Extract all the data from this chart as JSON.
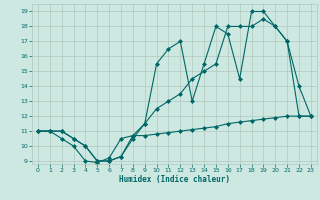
{
  "xlabel": "Humidex (Indice chaleur)",
  "ylabel": "",
  "xlim": [
    -0.5,
    23.5
  ],
  "ylim": [
    8.8,
    19.5
  ],
  "xticks": [
    0,
    1,
    2,
    3,
    4,
    5,
    6,
    7,
    8,
    9,
    10,
    11,
    12,
    13,
    14,
    15,
    16,
    17,
    18,
    19,
    20,
    21,
    22,
    23
  ],
  "yticks": [
    9,
    10,
    11,
    12,
    13,
    14,
    15,
    16,
    17,
    18,
    19
  ],
  "background_color": "#cce8e0",
  "grid_color": "#b0c8c0",
  "line_color": "#006666",
  "line1_x": [
    0,
    1,
    2,
    3,
    4,
    5,
    6,
    7,
    8,
    9,
    10,
    11,
    12,
    13,
    14,
    15,
    16,
    17,
    18,
    19,
    20,
    21,
    22,
    23
  ],
  "line1_y": [
    11,
    11,
    11,
    10.5,
    10,
    9,
    9,
    9.3,
    10.7,
    11.5,
    15.5,
    16.5,
    17.0,
    13.0,
    15.5,
    18.0,
    17.5,
    14.5,
    19.0,
    19.0,
    18.0,
    17.0,
    14.0,
    12.0
  ],
  "line2_x": [
    0,
    1,
    2,
    3,
    4,
    5,
    6,
    7,
    8,
    9,
    10,
    11,
    12,
    13,
    14,
    15,
    16,
    17,
    18,
    19,
    20,
    21,
    22,
    23
  ],
  "line2_y": [
    11,
    11,
    11,
    10.5,
    10,
    9,
    9,
    9.3,
    10.5,
    11.5,
    12.5,
    13.0,
    13.5,
    14.5,
    15.0,
    15.5,
    18.0,
    18.0,
    18.0,
    18.5,
    18.0,
    17.0,
    12.0,
    12.0
  ],
  "line3_x": [
    0,
    1,
    2,
    3,
    4,
    5,
    6,
    7,
    8,
    9,
    10,
    11,
    12,
    13,
    14,
    15,
    16,
    17,
    18,
    19,
    20,
    21,
    22,
    23
  ],
  "line3_y": [
    11,
    11,
    10.5,
    10.0,
    9.0,
    8.9,
    9.2,
    10.5,
    10.7,
    10.7,
    10.8,
    10.9,
    11.0,
    11.1,
    11.2,
    11.3,
    11.5,
    11.6,
    11.7,
    11.8,
    11.9,
    12.0,
    12.0,
    12.0
  ]
}
